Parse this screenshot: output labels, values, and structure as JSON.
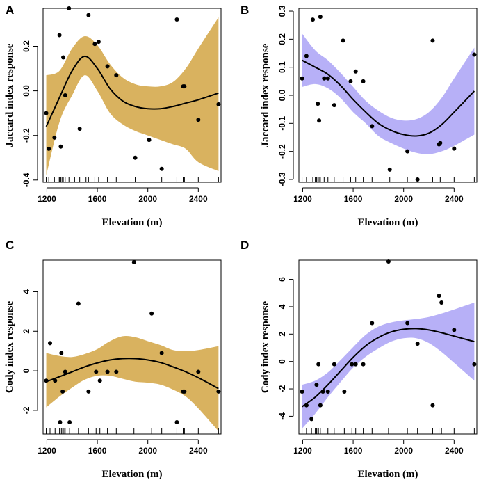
{
  "chart_data": [
    {
      "id": "A",
      "type": "scatter",
      "panel_label": "A",
      "xlabel": "Elevation (m)",
      "ylabel": "Jaccard index response",
      "band_color": "#d9b25f",
      "xlim": [
        1170,
        2580
      ],
      "ylim": [
        -0.41,
        0.37
      ],
      "xticks": [
        1200,
        1600,
        2000,
        2400
      ],
      "yticks": [
        -0.4,
        -0.2,
        0.0,
        0.2
      ],
      "ytick_labels": [
        "-0.4",
        "-0.2",
        "0.0",
        "0.2"
      ],
      "points": [
        [
          1195,
          -0.1
        ],
        [
          1215,
          -0.26
        ],
        [
          1260,
          -0.21
        ],
        [
          1300,
          0.25
        ],
        [
          1310,
          -0.25
        ],
        [
          1330,
          0.15
        ],
        [
          1345,
          -0.02
        ],
        [
          1375,
          0.37
        ],
        [
          1460,
          -0.17
        ],
        [
          1530,
          0.34
        ],
        [
          1580,
          0.21
        ],
        [
          1610,
          0.22
        ],
        [
          1680,
          0.11
        ],
        [
          1750,
          0.07
        ],
        [
          1900,
          -0.3
        ],
        [
          2010,
          -0.22
        ],
        [
          2110,
          -0.35
        ],
        [
          2230,
          0.32
        ],
        [
          2280,
          0.02
        ],
        [
          2290,
          0.02
        ],
        [
          2400,
          -0.13
        ],
        [
          2560,
          -0.06
        ]
      ],
      "fit": [
        [
          1195,
          -0.16
        ],
        [
          1300,
          -0.03
        ],
        [
          1400,
          0.09
        ],
        [
          1500,
          0.155
        ],
        [
          1600,
          0.1
        ],
        [
          1700,
          0.01
        ],
        [
          1800,
          -0.045
        ],
        [
          1900,
          -0.07
        ],
        [
          2000,
          -0.08
        ],
        [
          2100,
          -0.08
        ],
        [
          2200,
          -0.07
        ],
        [
          2300,
          -0.055
        ],
        [
          2400,
          -0.04
        ],
        [
          2560,
          -0.01
        ]
      ],
      "upper": [
        [
          1195,
          0.07
        ],
        [
          1300,
          0.09
        ],
        [
          1400,
          0.19
        ],
        [
          1500,
          0.245
        ],
        [
          1600,
          0.205
        ],
        [
          1700,
          0.12
        ],
        [
          1800,
          0.06
        ],
        [
          1900,
          0.03
        ],
        [
          2000,
          0.02
        ],
        [
          2100,
          0.02
        ],
        [
          2200,
          0.04
        ],
        [
          2300,
          0.1
        ],
        [
          2400,
          0.19
        ],
        [
          2560,
          0.33
        ]
      ],
      "lower": [
        [
          1195,
          -0.38
        ],
        [
          1300,
          -0.14
        ],
        [
          1400,
          -0.02
        ],
        [
          1500,
          0.07
        ],
        [
          1600,
          0.0
        ],
        [
          1700,
          -0.1
        ],
        [
          1800,
          -0.15
        ],
        [
          1900,
          -0.18
        ],
        [
          2000,
          -0.2
        ],
        [
          2100,
          -0.22
        ],
        [
          2200,
          -0.24
        ],
        [
          2300,
          -0.26
        ],
        [
          2400,
          -0.32
        ],
        [
          2560,
          -0.36
        ]
      ],
      "rug": [
        1195,
        1215,
        1260,
        1290,
        1300,
        1310,
        1320,
        1330,
        1345,
        1375,
        1420,
        1460,
        1510,
        1530,
        1580,
        1610,
        1680,
        1750,
        1900,
        2010,
        2110,
        2230,
        2280,
        2290,
        2400,
        2560
      ]
    },
    {
      "id": "B",
      "type": "scatter",
      "panel_label": "B",
      "xlabel": "Elevation (m)",
      "ylabel": "Jaccard index response",
      "band_color": "#b7b0f7",
      "xlim": [
        1170,
        2580
      ],
      "ylim": [
        -0.31,
        0.31
      ],
      "xticks": [
        1200,
        1600,
        2000,
        2400
      ],
      "yticks": [
        -0.3,
        -0.2,
        -0.1,
        0.0,
        0.1,
        0.2,
        0.3
      ],
      "ytick_labels": [
        "-0.3",
        "-0.2",
        "-0.1",
        "0.0",
        "0.1",
        "0.2",
        "0.3"
      ],
      "points": [
        [
          1195,
          0.06
        ],
        [
          1230,
          0.14
        ],
        [
          1280,
          0.27
        ],
        [
          1320,
          -0.03
        ],
        [
          1330,
          -0.09
        ],
        [
          1340,
          0.28
        ],
        [
          1370,
          0.06
        ],
        [
          1400,
          0.06
        ],
        [
          1450,
          -0.035
        ],
        [
          1520,
          0.195
        ],
        [
          1580,
          0.05
        ],
        [
          1620,
          0.085
        ],
        [
          1680,
          0.05
        ],
        [
          1750,
          -0.11
        ],
        [
          1890,
          -0.265
        ],
        [
          2030,
          -0.2
        ],
        [
          2110,
          -0.3
        ],
        [
          2230,
          0.195
        ],
        [
          2280,
          -0.175
        ],
        [
          2290,
          -0.17
        ],
        [
          2400,
          -0.19
        ],
        [
          2560,
          0.145
        ]
      ],
      "fit": [
        [
          1195,
          0.125
        ],
        [
          1300,
          0.1
        ],
        [
          1400,
          0.075
        ],
        [
          1500,
          0.035
        ],
        [
          1600,
          -0.015
        ],
        [
          1700,
          -0.06
        ],
        [
          1800,
          -0.1
        ],
        [
          1900,
          -0.125
        ],
        [
          2000,
          -0.14
        ],
        [
          2100,
          -0.145
        ],
        [
          2200,
          -0.135
        ],
        [
          2300,
          -0.105
        ],
        [
          2400,
          -0.06
        ],
        [
          2560,
          0.015
        ]
      ],
      "upper": [
        [
          1195,
          0.22
        ],
        [
          1300,
          0.16
        ],
        [
          1400,
          0.125
        ],
        [
          1500,
          0.08
        ],
        [
          1600,
          0.03
        ],
        [
          1700,
          -0.02
        ],
        [
          1800,
          -0.055
        ],
        [
          1900,
          -0.08
        ],
        [
          2000,
          -0.09
        ],
        [
          2100,
          -0.085
        ],
        [
          2200,
          -0.06
        ],
        [
          2300,
          -0.01
        ],
        [
          2400,
          0.06
        ],
        [
          2560,
          0.17
        ]
      ],
      "lower": [
        [
          1195,
          0.03
        ],
        [
          1300,
          0.04
        ],
        [
          1400,
          0.025
        ],
        [
          1500,
          -0.01
        ],
        [
          1600,
          -0.06
        ],
        [
          1700,
          -0.1
        ],
        [
          1800,
          -0.145
        ],
        [
          1900,
          -0.17
        ],
        [
          2000,
          -0.19
        ],
        [
          2100,
          -0.205
        ],
        [
          2200,
          -0.21
        ],
        [
          2300,
          -0.2
        ],
        [
          2400,
          -0.18
        ],
        [
          2560,
          -0.14
        ]
      ],
      "rug": [
        1195,
        1230,
        1280,
        1300,
        1310,
        1320,
        1330,
        1340,
        1370,
        1400,
        1450,
        1520,
        1580,
        1620,
        1680,
        1750,
        1890,
        2030,
        2110,
        2230,
        2280,
        2290,
        2400,
        2560
      ]
    },
    {
      "id": "C",
      "type": "scatter",
      "panel_label": "C",
      "xlabel": "Elevation (m)",
      "ylabel": "Cody index response",
      "band_color": "#d9b25f",
      "xlim": [
        1170,
        2580
      ],
      "ylim": [
        -3.2,
        5.6
      ],
      "xticks": [
        1200,
        1600,
        2000,
        2400
      ],
      "yticks": [
        -2,
        0,
        2,
        4
      ],
      "ytick_labels": [
        "-2",
        "0",
        "2",
        "4"
      ],
      "points": [
        [
          1195,
          -0.5
        ],
        [
          1225,
          1.4
        ],
        [
          1265,
          -0.5
        ],
        [
          1305,
          -2.6
        ],
        [
          1315,
          0.9
        ],
        [
          1325,
          -1.05
        ],
        [
          1345,
          -0.05
        ],
        [
          1380,
          -2.6
        ],
        [
          1450,
          3.4
        ],
        [
          1530,
          -1.05
        ],
        [
          1590,
          -0.05
        ],
        [
          1620,
          -0.5
        ],
        [
          1680,
          -0.05
        ],
        [
          1750,
          -0.05
        ],
        [
          1890,
          5.5
        ],
        [
          2030,
          2.9
        ],
        [
          2110,
          0.9
        ],
        [
          2230,
          -2.6
        ],
        [
          2280,
          -1.05
        ],
        [
          2290,
          -1.05
        ],
        [
          2400,
          -0.05
        ],
        [
          2560,
          -1.05
        ]
      ],
      "fit": [
        [
          1195,
          -0.55
        ],
        [
          1300,
          -0.3
        ],
        [
          1400,
          -0.05
        ],
        [
          1500,
          0.2
        ],
        [
          1600,
          0.4
        ],
        [
          1700,
          0.55
        ],
        [
          1800,
          0.62
        ],
        [
          1900,
          0.62
        ],
        [
          2000,
          0.55
        ],
        [
          2100,
          0.42
        ],
        [
          2200,
          0.2
        ],
        [
          2300,
          -0.05
        ],
        [
          2400,
          -0.35
        ],
        [
          2560,
          -0.9
        ]
      ],
      "upper": [
        [
          1195,
          0.9
        ],
        [
          1300,
          0.75
        ],
        [
          1400,
          0.7
        ],
        [
          1500,
          0.85
        ],
        [
          1600,
          1.1
        ],
        [
          1700,
          1.5
        ],
        [
          1800,
          1.75
        ],
        [
          1900,
          1.7
        ],
        [
          2000,
          1.5
        ],
        [
          2100,
          1.3
        ],
        [
          2200,
          1.05
        ],
        [
          2300,
          1.0
        ],
        [
          2400,
          1.05
        ],
        [
          2560,
          1.25
        ]
      ],
      "lower": [
        [
          1195,
          -1.85
        ],
        [
          1300,
          -1.3
        ],
        [
          1400,
          -0.85
        ],
        [
          1500,
          -0.45
        ],
        [
          1600,
          -0.25
        ],
        [
          1700,
          -0.25
        ],
        [
          1800,
          -0.4
        ],
        [
          1900,
          -0.55
        ],
        [
          2000,
          -0.6
        ],
        [
          2100,
          -0.7
        ],
        [
          2200,
          -0.95
        ],
        [
          2300,
          -1.3
        ],
        [
          2400,
          -1.9
        ],
        [
          2560,
          -3.05
        ]
      ],
      "rug": [
        1195,
        1225,
        1265,
        1300,
        1305,
        1315,
        1325,
        1335,
        1345,
        1380,
        1450,
        1530,
        1590,
        1620,
        1680,
        1750,
        1890,
        2030,
        2110,
        2230,
        2280,
        2290,
        2400,
        2560
      ]
    },
    {
      "id": "D",
      "type": "scatter",
      "panel_label": "D",
      "xlabel": "Elevation (m)",
      "ylabel": "Cody index response",
      "band_color": "#b7b0f7",
      "xlim": [
        1170,
        2580
      ],
      "ylim": [
        -5.3,
        7.4
      ],
      "xticks": [
        1200,
        1600,
        2000,
        2400
      ],
      "yticks": [
        -4,
        -2,
        0,
        2,
        4,
        6
      ],
      "ytick_labels": [
        "-4",
        "-2",
        "0",
        "2",
        "4",
        "6"
      ],
      "points": [
        [
          1195,
          -2.2
        ],
        [
          1230,
          -3.2
        ],
        [
          1270,
          -4.2
        ],
        [
          1310,
          -1.7
        ],
        [
          1325,
          -0.2
        ],
        [
          1340,
          -3.2
        ],
        [
          1360,
          -2.2
        ],
        [
          1400,
          -2.2
        ],
        [
          1450,
          -0.2
        ],
        [
          1530,
          -2.2
        ],
        [
          1590,
          -0.2
        ],
        [
          1620,
          -0.2
        ],
        [
          1680,
          -0.2
        ],
        [
          1750,
          2.8
        ],
        [
          1880,
          7.3
        ],
        [
          2030,
          2.8
        ],
        [
          2110,
          1.3
        ],
        [
          2230,
          -3.2
        ],
        [
          2280,
          4.8
        ],
        [
          2300,
          4.3
        ],
        [
          2400,
          2.3
        ],
        [
          2560,
          -0.2
        ]
      ],
      "fit": [
        [
          1195,
          -3.3
        ],
        [
          1300,
          -2.6
        ],
        [
          1400,
          -1.7
        ],
        [
          1500,
          -0.7
        ],
        [
          1600,
          0.3
        ],
        [
          1700,
          1.15
        ],
        [
          1800,
          1.75
        ],
        [
          1900,
          2.15
        ],
        [
          2000,
          2.35
        ],
        [
          2100,
          2.4
        ],
        [
          2200,
          2.3
        ],
        [
          2300,
          2.1
        ],
        [
          2400,
          1.85
        ],
        [
          2560,
          1.45
        ]
      ],
      "upper": [
        [
          1195,
          -1.7
        ],
        [
          1300,
          -1.4
        ],
        [
          1400,
          -0.8
        ],
        [
          1500,
          0.1
        ],
        [
          1600,
          1.05
        ],
        [
          1700,
          1.95
        ],
        [
          1800,
          2.55
        ],
        [
          1900,
          2.85
        ],
        [
          2000,
          3.0
        ],
        [
          2100,
          3.1
        ],
        [
          2200,
          3.25
        ],
        [
          2300,
          3.5
        ],
        [
          2400,
          3.8
        ],
        [
          2560,
          4.3
        ]
      ],
      "lower": [
        [
          1195,
          -4.9
        ],
        [
          1300,
          -3.8
        ],
        [
          1400,
          -2.6
        ],
        [
          1500,
          -1.5
        ],
        [
          1600,
          -0.45
        ],
        [
          1700,
          0.35
        ],
        [
          1800,
          0.95
        ],
        [
          1900,
          1.45
        ],
        [
          2000,
          1.7
        ],
        [
          2100,
          1.7
        ],
        [
          2200,
          1.35
        ],
        [
          2300,
          0.7
        ],
        [
          2400,
          -0.1
        ],
        [
          2560,
          -1.4
        ]
      ],
      "rug": [
        1195,
        1230,
        1270,
        1300,
        1310,
        1320,
        1325,
        1340,
        1360,
        1400,
        1450,
        1530,
        1590,
        1620,
        1680,
        1750,
        1880,
        2030,
        2110,
        2230,
        2280,
        2300,
        2400,
        2560
      ]
    }
  ]
}
